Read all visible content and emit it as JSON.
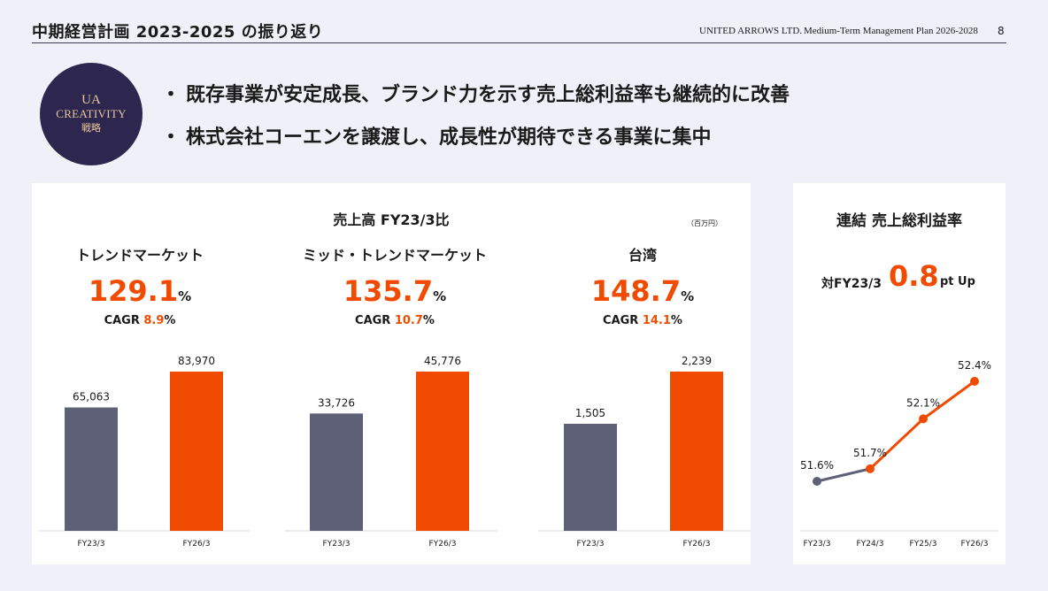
{
  "header": {
    "title": "中期経営計画 2023-2025 の振り返り",
    "company": "UNITED ARROWS LTD.",
    "plan": "Medium-Term Management Plan 2026-2028",
    "page": "8"
  },
  "badge": {
    "line1": "UA",
    "line2": "CREATIVITY",
    "line3": "戦略"
  },
  "bullets": [
    "既存事業が安定成長、ブランド力を示す売上総利益率も継続的に改善",
    "株式会社コーエンを譲渡し、成長性が期待できる事業に集中"
  ],
  "sales": {
    "title": "売上高 FY23/3比",
    "unit": "（百万円）",
    "segments": [
      {
        "name": "トレンドマーケット",
        "pct": "129.1",
        "pct_unit": "%",
        "cagr_label": "CAGR ",
        "cagr": "8.9",
        "cagr_unit": "%"
      },
      {
        "name": "ミッド・トレンドマーケット",
        "pct": "135.7",
        "pct_unit": "%",
        "cagr_label": "CAGR ",
        "cagr": "10.7",
        "cagr_unit": "%"
      },
      {
        "name": "台湾",
        "pct": "148.7",
        "pct_unit": "%",
        "cagr_label": "CAGR ",
        "cagr": "14.1",
        "cagr_unit": "%"
      }
    ]
  },
  "margin": {
    "title": "連結 売上総利益率",
    "vs_label": "対FY23/3",
    "delta": "0.8",
    "delta_unit": "pt Up"
  },
  "colors": {
    "accent": "#f04b00",
    "base_bar": "#5d6077",
    "badge_bg": "#2d2750",
    "badge_text": "#e8c79b",
    "line_gray": "#5d6077"
  },
  "chart_data": [
    {
      "type": "bar",
      "title": "トレンドマーケット",
      "categories": [
        "FY23/3",
        "FY26/3"
      ],
      "values": [
        65063,
        83970
      ],
      "labels": [
        "65,063",
        "83,970"
      ]
    },
    {
      "type": "bar",
      "title": "ミッド・トレンドマーケット",
      "categories": [
        "FY23/3",
        "FY26/3"
      ],
      "values": [
        33726,
        45776
      ],
      "labels": [
        "33,726",
        "45,776"
      ]
    },
    {
      "type": "bar",
      "title": "台湾",
      "categories": [
        "FY23/3",
        "FY26/3"
      ],
      "values": [
        1505,
        2239
      ],
      "labels": [
        "1,505",
        "2,239"
      ]
    },
    {
      "type": "line",
      "title": "連結 売上総利益率",
      "categories": [
        "FY23/3",
        "FY24/3",
        "FY25/3",
        "FY26/3"
      ],
      "values": [
        51.6,
        51.7,
        52.1,
        52.4
      ],
      "labels": [
        "51.6%",
        "51.7%",
        "52.1%",
        "52.4%"
      ]
    }
  ]
}
